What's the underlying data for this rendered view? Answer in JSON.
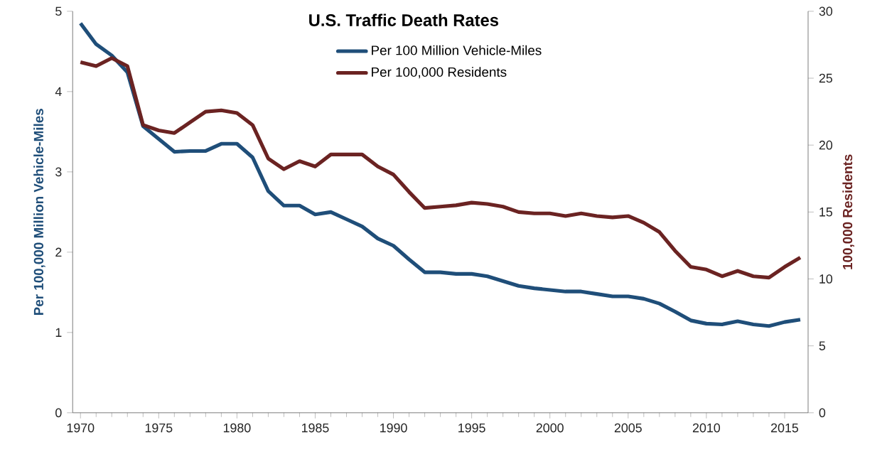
{
  "chart_data": {
    "type": "line",
    "title": "U.S. Traffic Death Rates",
    "ylabel": "Per 100,000 Million Vehicle-Miles",
    "y2label": "100,000 Residents",
    "x": [
      1970,
      1971,
      1972,
      1973,
      1974,
      1975,
      1976,
      1977,
      1978,
      1979,
      1980,
      1981,
      1982,
      1983,
      1984,
      1985,
      1986,
      1987,
      1988,
      1989,
      1990,
      1991,
      1992,
      1993,
      1994,
      1995,
      1996,
      1997,
      1998,
      1999,
      2000,
      2001,
      2002,
      2003,
      2004,
      2005,
      2006,
      2007,
      2008,
      2009,
      2010,
      2011,
      2012,
      2013,
      2014,
      2015,
      2016
    ],
    "series": [
      {
        "name": "Per 100 Million Vehicle-Miles",
        "color": "#1f4e79",
        "values": [
          4.85,
          4.59,
          4.45,
          4.24,
          3.57,
          3.41,
          3.25,
          3.26,
          3.26,
          3.35,
          3.35,
          3.18,
          2.76,
          2.58,
          2.58,
          2.47,
          2.5,
          2.41,
          2.32,
          2.17,
          2.08,
          1.91,
          1.75,
          1.75,
          1.73,
          1.73,
          1.7,
          1.64,
          1.58,
          1.55,
          1.53,
          1.51,
          1.51,
          1.48,
          1.45,
          1.45,
          1.42,
          1.36,
          1.26,
          1.15,
          1.11,
          1.1,
          1.14,
          1.1,
          1.08,
          1.13,
          1.16
        ]
      },
      {
        "name": "Per 100,000 Residents",
        "color": "#6b2322",
        "axis": "y2",
        "values": [
          26.2,
          25.9,
          26.5,
          25.9,
          21.5,
          21.1,
          20.9,
          21.7,
          22.5,
          22.6,
          22.4,
          21.5,
          19.0,
          18.2,
          18.8,
          18.4,
          19.3,
          19.3,
          19.3,
          18.4,
          17.8,
          16.5,
          15.3,
          15.4,
          15.5,
          15.7,
          15.6,
          15.4,
          15.0,
          14.9,
          14.9,
          14.7,
          14.9,
          14.7,
          14.6,
          14.7,
          14.2,
          13.5,
          12.1,
          10.9,
          10.7,
          10.2,
          10.6,
          10.2,
          10.1,
          10.9,
          11.6
        ]
      }
    ],
    "xlim": [
      1969.5,
      2016.5
    ],
    "xticks": [
      1970,
      1975,
      1980,
      1985,
      1990,
      1995,
      2000,
      2005,
      2010,
      2015
    ],
    "ylim": [
      0,
      5
    ],
    "yticks": [
      0,
      1,
      2,
      3,
      4,
      5
    ],
    "y2lim": [
      0,
      30
    ],
    "y2ticks": [
      0,
      5,
      10,
      15,
      20,
      25,
      30
    ],
    "grid": false,
    "legend": "top",
    "line_style": "solid",
    "marker": "none"
  }
}
